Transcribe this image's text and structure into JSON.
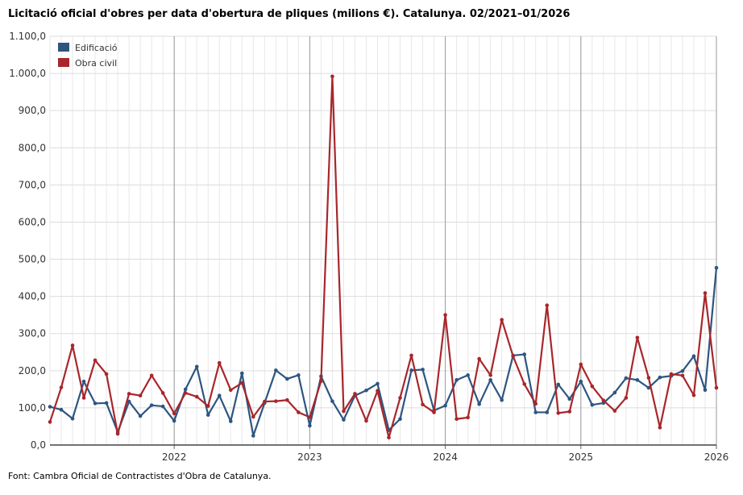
{
  "title": "Licitació oficial d'obres per data d'obertura de pliques (milions €). Catalunya. 02/2021–01/2026",
  "source": "Font: Cambra Oficial de Contractistes d'Obra de Catalunya.",
  "chart_data": {
    "type": "line",
    "title": "Licitació oficial d'obres per data d'obertura de pliques (milions €). Catalunya. 02/2021–01/2026",
    "xlabel": "",
    "ylabel": "",
    "ylim": [
      0,
      1100
    ],
    "yticks": [
      "0,0",
      "100,0",
      "200,0",
      "300,0",
      "400,0",
      "500,0",
      "600,0",
      "700,0",
      "800,0",
      "900,0",
      "1.000,0",
      "1.100,0"
    ],
    "x_start": "02/2021",
    "x_end": "01/2026",
    "xticks": [
      {
        "label": "2022",
        "index": 11
      },
      {
        "label": "2023",
        "index": 23
      },
      {
        "label": "2024",
        "index": 35
      },
      {
        "label": "2025",
        "index": 47
      },
      {
        "label": "2026",
        "index": 59
      }
    ],
    "legend": "top-left",
    "colors": {
      "Edificació": "#2e5580",
      "Obra civil": "#a8262b"
    },
    "series": [
      {
        "name": "Edificació",
        "values": [
          103,
          95,
          71,
          171,
          112,
          113,
          35,
          117,
          78,
          107,
          104,
          65,
          150,
          211,
          81,
          133,
          64,
          193,
          25,
          113,
          201,
          178,
          188,
          52,
          185,
          118,
          68,
          133,
          147,
          165,
          40,
          70,
          201,
          203,
          93,
          106,
          175,
          188,
          110,
          175,
          121,
          241,
          244,
          88,
          88,
          163,
          124,
          171,
          108,
          113,
          141,
          180,
          175,
          154,
          182,
          186,
          199,
          239,
          148,
          477
        ]
      },
      {
        "name": "Obra civil",
        "values": [
          62,
          155,
          268,
          127,
          228,
          191,
          30,
          138,
          133,
          187,
          140,
          85,
          140,
          130,
          105,
          221,
          148,
          167,
          76,
          117,
          118,
          121,
          88,
          75,
          172,
          992,
          91,
          138,
          65,
          146,
          20,
          127,
          241,
          109,
          88,
          350,
          70,
          74,
          232,
          188,
          337,
          239,
          164,
          111,
          376,
          86,
          90,
          217,
          158,
          120,
          92,
          127,
          289,
          181,
          47,
          191,
          187,
          134,
          409,
          154
        ]
      }
    ]
  }
}
